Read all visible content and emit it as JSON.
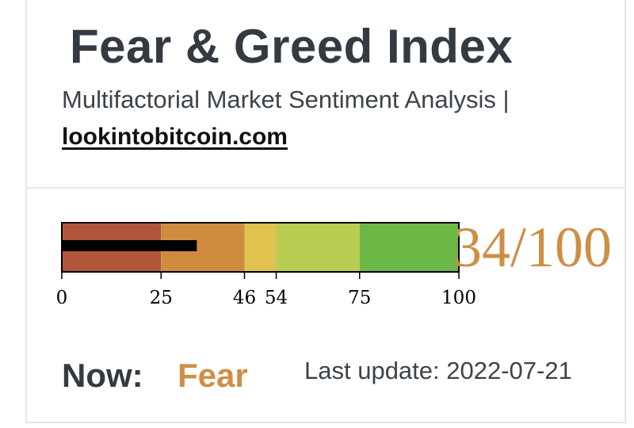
{
  "header": {
    "title": "Fear & Greed Index",
    "subtitle": "Multifactorial Market Sentiment Analysis |",
    "link_text": "lookintobitcoin.com"
  },
  "gauge": {
    "min": 0,
    "max": 100,
    "value": 34,
    "score_text": "34/100",
    "ticks": [
      0,
      25,
      46,
      54,
      75,
      100
    ],
    "zones": [
      {
        "from": 0,
        "to": 25,
        "color": "#b1563a"
      },
      {
        "from": 25,
        "to": 46,
        "color": "#d18b3f"
      },
      {
        "from": 46,
        "to": 54,
        "color": "#e0c24f"
      },
      {
        "from": 54,
        "to": 75,
        "color": "#b8ce52"
      },
      {
        "from": 75,
        "to": 100,
        "color": "#6cb846"
      }
    ],
    "indicator_color": "#000000",
    "score_color": "#cd8f45"
  },
  "status": {
    "now_label": "Now:",
    "now_value": "Fear",
    "last_update": "Last update: 2022-07-21"
  }
}
